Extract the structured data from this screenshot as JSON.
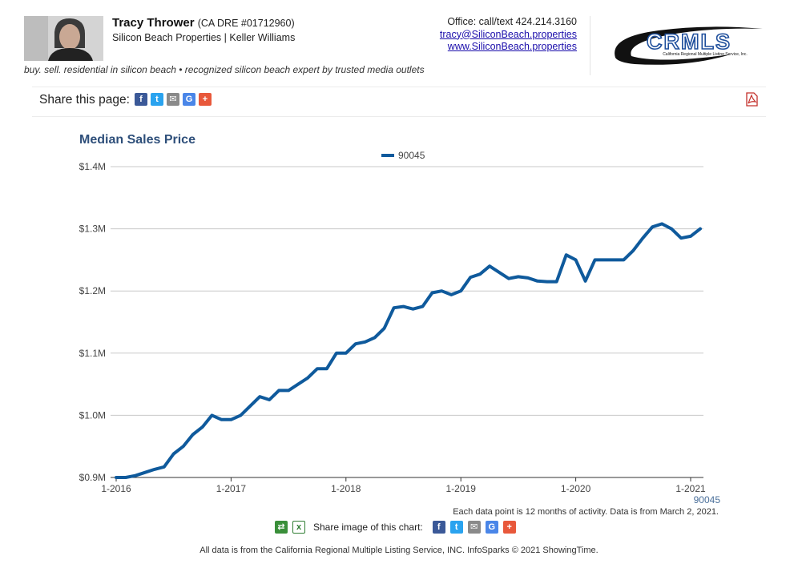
{
  "agent": {
    "name": "Tracy Thrower",
    "dre": "(CA DRE #01712960)",
    "company": "Silicon Beach Properties | Keller Williams",
    "tagline": "buy. sell. residential in silicon beach • recognized silicon beach expert by trusted media outlets"
  },
  "contact": {
    "office": "Office: call/text 424.214.3160",
    "email": "tracy@SiliconBeach.properties",
    "website": "www.SiliconBeach.properties"
  },
  "logo": {
    "text": "CRMLS",
    "subtext": "California Regional Multiple Listing Service, Inc."
  },
  "share": {
    "label": "Share this page:",
    "icons": [
      "facebook-icon",
      "twitter-icon",
      "email-icon",
      "google-icon",
      "plus-icon"
    ]
  },
  "colors": {
    "series": "#0f5a9c",
    "title": "#2e4f7a",
    "grid": "#c8c8c8"
  },
  "chart_data": {
    "type": "line",
    "title": "Median Sales Price",
    "xlabel": "",
    "ylabel": "",
    "ylim": [
      900000,
      1400000
    ],
    "yticks": [
      {
        "value": 900000,
        "label": "$0.9M"
      },
      {
        "value": 1000000,
        "label": "$1.0M"
      },
      {
        "value": 1100000,
        "label": "$1.1M"
      },
      {
        "value": 1200000,
        "label": "$1.2M"
      },
      {
        "value": 1300000,
        "label": "$1.3M"
      },
      {
        "value": 1400000,
        "label": "$1.4M"
      }
    ],
    "xticks": [
      "1-2016",
      "1-2017",
      "1-2018",
      "1-2019",
      "1-2020",
      "1-2021"
    ],
    "x_end_label": "90045",
    "grid": true,
    "legend_position": "top-center",
    "series": [
      {
        "name": "90045",
        "color": "#0f5a9c",
        "x": [
          "1-2016",
          "2-2016",
          "3-2016",
          "4-2016",
          "5-2016",
          "6-2016",
          "7-2016",
          "8-2016",
          "9-2016",
          "10-2016",
          "11-2016",
          "12-2016",
          "1-2017",
          "2-2017",
          "3-2017",
          "4-2017",
          "5-2017",
          "6-2017",
          "7-2017",
          "8-2017",
          "9-2017",
          "10-2017",
          "11-2017",
          "12-2017",
          "1-2018",
          "2-2018",
          "3-2018",
          "4-2018",
          "5-2018",
          "6-2018",
          "7-2018",
          "8-2018",
          "9-2018",
          "10-2018",
          "11-2018",
          "12-2018",
          "1-2019",
          "2-2019",
          "3-2019",
          "4-2019",
          "5-2019",
          "6-2019",
          "7-2019",
          "8-2019",
          "9-2019",
          "10-2019",
          "11-2019",
          "12-2019",
          "1-2020",
          "2-2020",
          "3-2020",
          "4-2020",
          "5-2020",
          "6-2020",
          "7-2020",
          "8-2020",
          "9-2020",
          "10-2020",
          "11-2020",
          "12-2020",
          "1-2021",
          "2-2021"
        ],
        "values": [
          900000,
          900000,
          903000,
          908000,
          913000,
          917000,
          938000,
          950000,
          969000,
          981000,
          1000000,
          993000,
          993000,
          1000000,
          1015000,
          1030000,
          1025000,
          1040000,
          1040000,
          1050000,
          1060000,
          1075000,
          1075000,
          1100000,
          1100000,
          1115000,
          1118000,
          1125000,
          1140000,
          1173000,
          1175000,
          1171000,
          1175000,
          1197000,
          1200000,
          1194000,
          1200000,
          1222000,
          1227000,
          1240000,
          1230000,
          1220000,
          1223000,
          1221000,
          1216000,
          1215000,
          1215000,
          1258000,
          1250000,
          1216000,
          1250000,
          1250000,
          1250000,
          1250000,
          1265000,
          1285000,
          1303000,
          1308000,
          1300000,
          1285000,
          1288000,
          1300000
        ]
      }
    ]
  },
  "chart_footer": {
    "note": "Each data point is 12 months of activity. Data is from March 2, 2021.",
    "share_image_label": "Share image of this chart:",
    "source": "All data is from the California Regional Multiple Listing Service, INC. InfoSparks © 2021 ShowingTime."
  }
}
